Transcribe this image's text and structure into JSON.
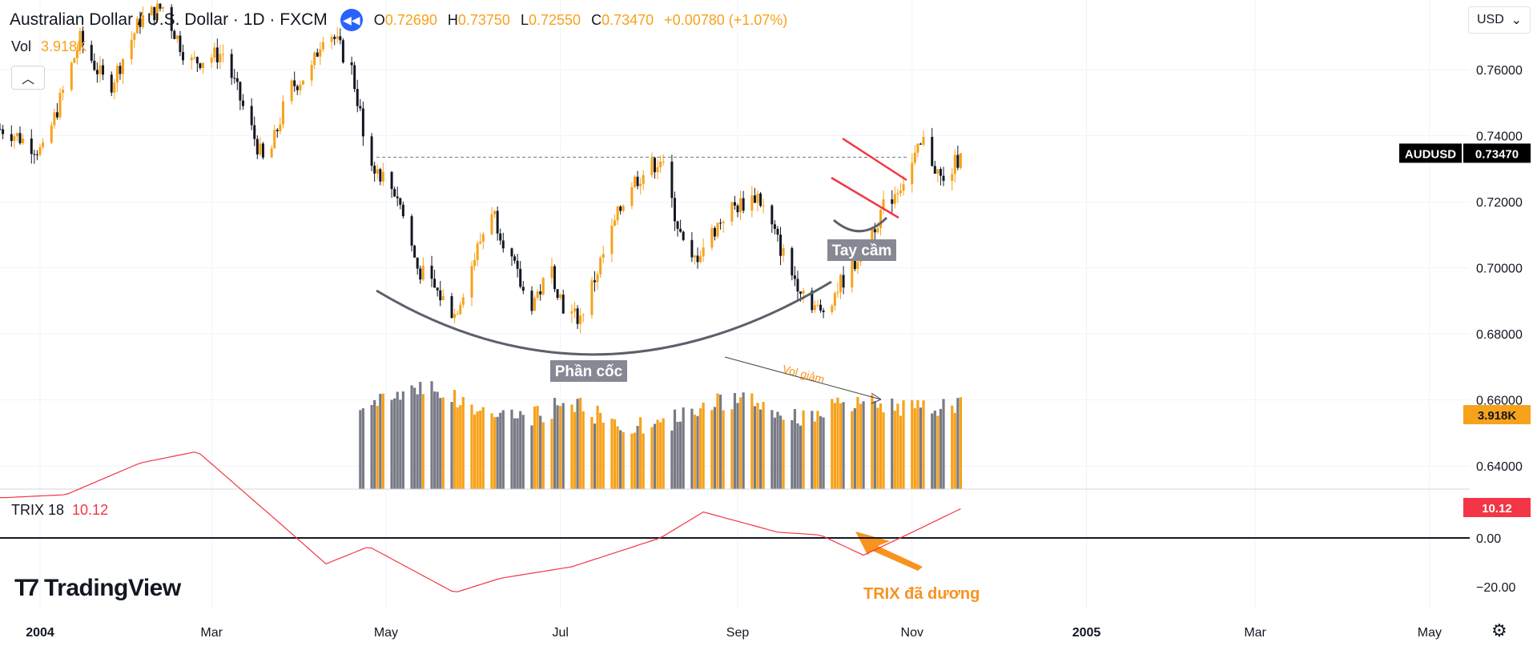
{
  "header": {
    "title": "Australian Dollar / U.S. Dollar · 1D · FXCM",
    "o_label": "O",
    "o_value": "0.72690",
    "h_label": "H",
    "h_value": "0.73750",
    "l_label": "L",
    "l_value": "0.72550",
    "c_label": "C",
    "c_value": "0.73470",
    "change": "+0.00780 (+1.07%)",
    "vol_label": "Vol",
    "vol_value": "3.918K",
    "currency": "USD"
  },
  "trix": {
    "label": "TRIX 18",
    "value": "10.12"
  },
  "logo_text": "TradingView",
  "colors": {
    "up": "#f7a21b",
    "down": "#131722",
    "accent": "#2962ff",
    "trix": "#f23645",
    "badge": "#000000",
    "annotation": "#f7931e"
  },
  "chart_data": {
    "type": "candlestick",
    "symbol_badge": "AUDUSD",
    "last_price": "0.73470",
    "volume_badge": "3.918K",
    "trix_badge": "10.12",
    "price_ticks": [
      "0.76000",
      "0.74000",
      "0.72000",
      "0.70000",
      "0.68000",
      "0.66000",
      "0.64000"
    ],
    "trix_ticks": [
      "0.00",
      "−20.00"
    ],
    "x_ticks": [
      "2004",
      "Mar",
      "May",
      "Jul",
      "Sep",
      "Nov",
      "2005",
      "Mar",
      "May"
    ],
    "resistance_level": 0.7335,
    "trix_period": 18,
    "annotations": {
      "cup": "Phần cốc",
      "handle": "Tay cầm",
      "volume_note": "Vol giảm",
      "trix_note": "TRIX đã dương"
    },
    "price_anchors": [
      [
        "2003-12-20",
        0.742
      ],
      [
        "2004-01-02",
        0.735
      ],
      [
        "2004-01-15",
        0.769
      ],
      [
        "2004-01-25",
        0.754
      ],
      [
        "2004-02-05",
        0.775
      ],
      [
        "2004-02-13",
        0.779
      ],
      [
        "2004-02-22",
        0.762
      ],
      [
        "2004-03-05",
        0.765
      ],
      [
        "2004-03-20",
        0.73
      ],
      [
        "2004-03-28",
        0.754
      ],
      [
        "2004-04-05",
        0.76
      ],
      [
        "2004-04-10",
        0.774
      ],
      [
        "2004-04-19",
        0.76
      ],
      [
        "2004-04-25",
        0.733
      ],
      [
        "2004-05-05",
        0.722
      ],
      [
        "2004-05-12",
        0.7
      ],
      [
        "2004-05-25",
        0.686
      ],
      [
        "2004-06-07",
        0.718
      ],
      [
        "2004-06-20",
        0.688
      ],
      [
        "2004-06-28",
        0.699
      ],
      [
        "2004-07-03",
        0.686
      ],
      [
        "2004-07-08",
        0.685
      ],
      [
        "2004-07-25",
        0.725
      ],
      [
        "2004-08-05",
        0.733
      ],
      [
        "2004-08-15",
        0.7
      ],
      [
        "2004-08-28",
        0.717
      ],
      [
        "2004-09-08",
        0.722
      ],
      [
        "2004-09-20",
        0.698
      ],
      [
        "2004-09-30",
        0.686
      ],
      [
        "2004-10-12",
        0.702
      ],
      [
        "2004-10-22",
        0.718
      ],
      [
        "2004-10-30",
        0.728
      ],
      [
        "2004-11-05",
        0.738
      ],
      [
        "2004-11-12",
        0.725
      ],
      [
        "2004-11-18",
        0.7347
      ]
    ],
    "volume_anchors": [
      [
        "2004-04-22",
        3.5
      ],
      [
        "2004-05-05",
        4.3
      ],
      [
        "2004-05-15",
        4.8
      ],
      [
        "2004-06-01",
        3.6
      ],
      [
        "2004-06-20",
        3.2
      ],
      [
        "2004-07-05",
        4.0
      ],
      [
        "2004-07-20",
        2.9
      ],
      [
        "2004-08-05",
        2.8
      ],
      [
        "2004-08-20",
        3.9
      ],
      [
        "2004-09-05",
        4.0
      ],
      [
        "2004-09-20",
        3.2
      ],
      [
        "2004-10-05",
        3.7
      ],
      [
        "2004-10-20",
        3.9
      ],
      [
        "2004-11-05",
        3.6
      ],
      [
        "2004-11-18",
        3.918
      ]
    ],
    "trix_anchors": [
      [
        "2003-12-20",
        14
      ],
      [
        "2004-01-10",
        15
      ],
      [
        "2004-02-05",
        26
      ],
      [
        "2004-02-25",
        30
      ],
      [
        "2004-03-25",
        5
      ],
      [
        "2004-04-10",
        -9
      ],
      [
        "2004-04-25",
        -3
      ],
      [
        "2004-05-25",
        -19
      ],
      [
        "2004-06-10",
        -14
      ],
      [
        "2004-07-05",
        -10
      ],
      [
        "2004-08-05",
        0
      ],
      [
        "2004-08-20",
        9
      ],
      [
        "2004-09-15",
        2
      ],
      [
        "2004-09-30",
        1
      ],
      [
        "2004-10-15",
        -6
      ],
      [
        "2004-10-30",
        1
      ],
      [
        "2004-11-18",
        10.12
      ]
    ]
  }
}
